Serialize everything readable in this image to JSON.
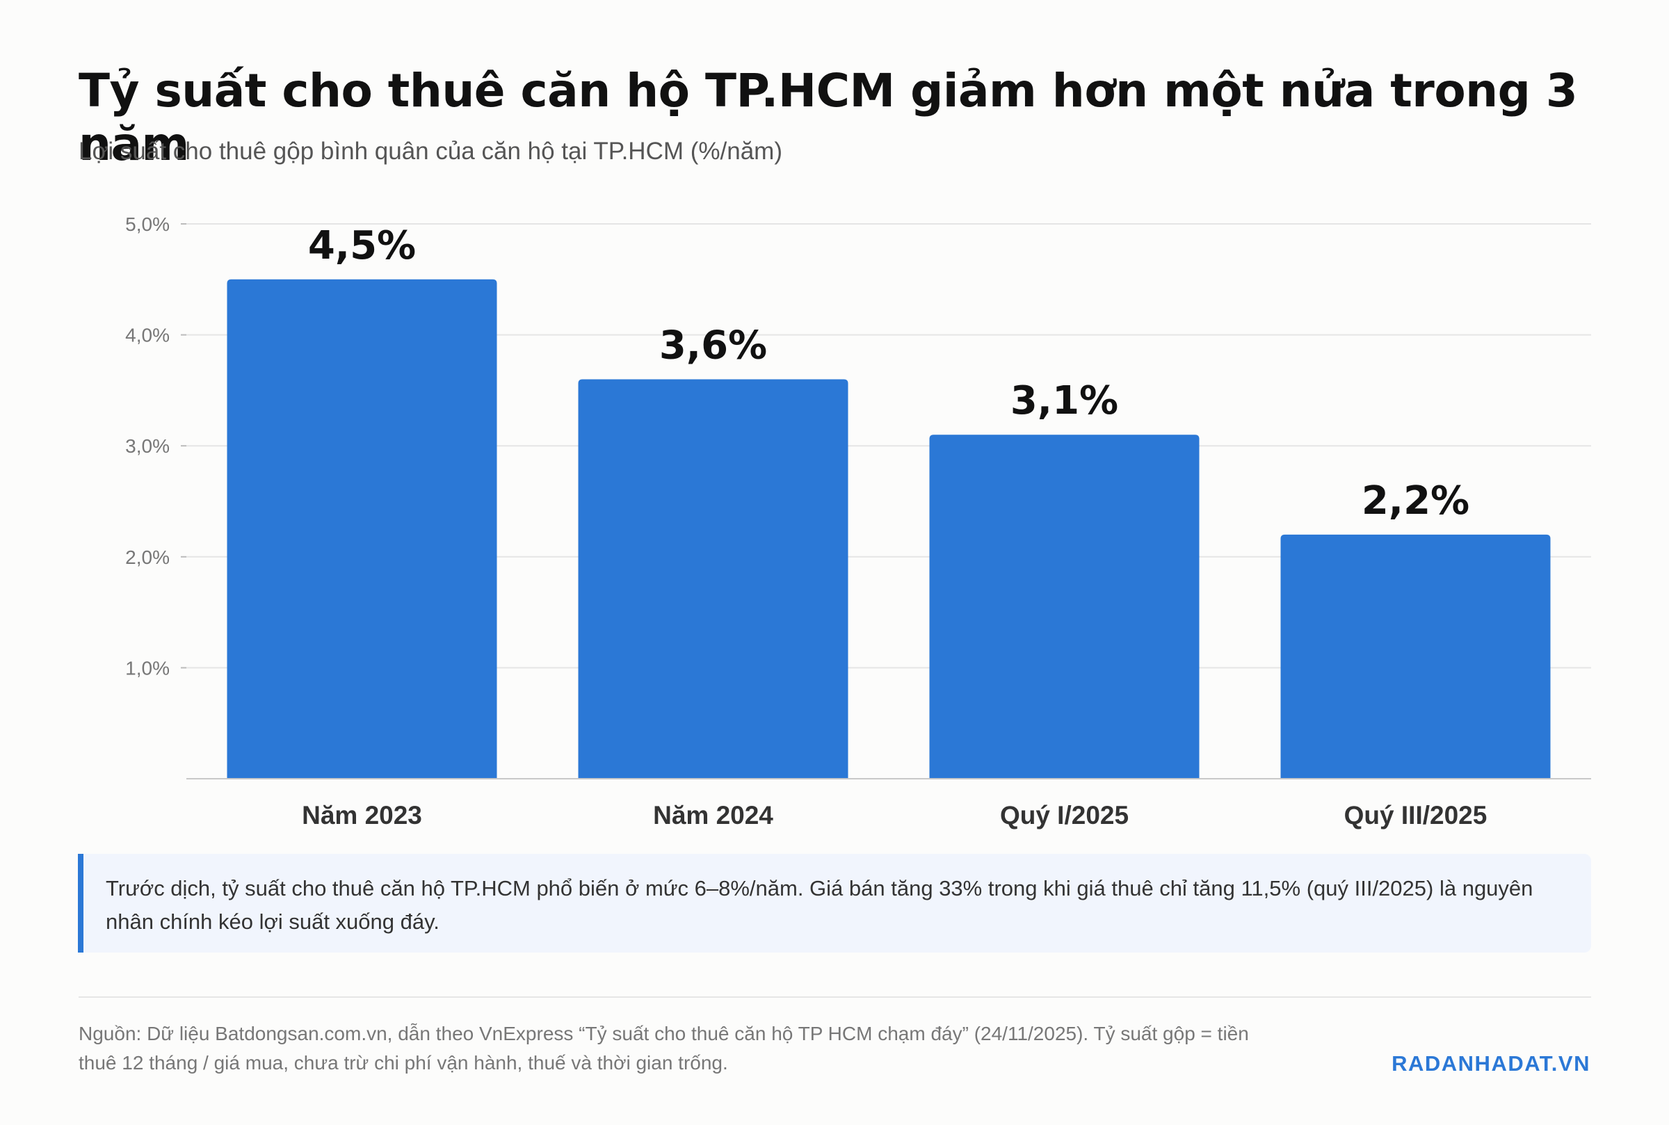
{
  "header": {
    "title": "Tỷ suất cho thuê căn hộ TP.HCM giảm hơn một nửa trong 3 năm",
    "subtitle": "Lợi suất cho thuê gộp bình quân của căn hộ tại TP.HCM (%/năm)"
  },
  "chart_data": {
    "type": "bar",
    "categories": [
      "Năm 2023",
      "Năm 2024",
      "Quý I/2025",
      "Quý III/2025"
    ],
    "values": [
      4.5,
      3.6,
      3.1,
      2.2
    ],
    "data_labels": [
      "4,5%",
      "3,6%",
      "3,1%",
      "2,2%"
    ],
    "yticks": [
      1.0,
      2.0,
      3.0,
      4.0,
      5.0
    ],
    "ytick_labels": [
      "1,0%",
      "2,0%",
      "3,0%",
      "4,0%",
      "5,0%"
    ],
    "ylim": [
      0,
      5
    ],
    "grid": true,
    "legend": "none",
    "bar_color": "#2b78d6"
  },
  "callout": {
    "text": "Trước dịch, tỷ suất cho thuê căn hộ TP.HCM phổ biến ở mức 6–8%/năm. Giá bán tăng 33% trong khi giá thuê chỉ tăng 11,5% (quý III/2025) là nguyên nhân chính kéo lợi suất xuống đáy."
  },
  "footer": {
    "source": "Nguồn: Dữ liệu Batdongsan.com.vn, dẫn theo VnExpress “Tỷ suất cho thuê căn hộ TP HCM chạm đáy” (24/11/2025). Tỷ suất gộp = tiền thuê 12 tháng / giá mua, chưa trừ chi phí vận hành, thuế và thời gian trống.",
    "brand": "RADANHADAT.VN"
  }
}
